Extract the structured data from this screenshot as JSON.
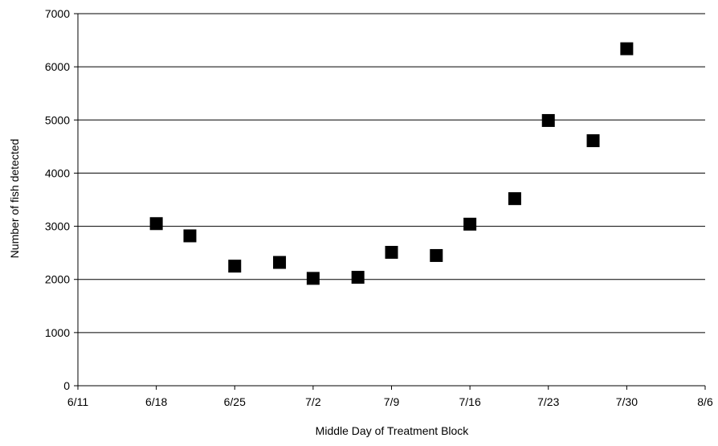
{
  "chart_data": {
    "type": "scatter",
    "title": "",
    "xlabel": "Middle Day of Treatment Block",
    "ylabel": "Number of fish detected",
    "x_ticks": [
      "6/11",
      "6/18",
      "6/25",
      "7/2",
      "7/9",
      "7/16",
      "7/23",
      "7/30",
      "8/6"
    ],
    "y_ticks": [
      "0",
      "1000",
      "2000",
      "3000",
      "4000",
      "5000",
      "6000",
      "7000"
    ],
    "xlim": [
      "6/11",
      "8/6"
    ],
    "ylim": [
      0,
      7000
    ],
    "grid": "horizontal",
    "legend": "none",
    "marker": "square",
    "colors": {
      "marker": "#000000",
      "grid": "#000000",
      "axis": "#000000"
    },
    "points": [
      {
        "x": "6/18",
        "y": 3050
      },
      {
        "x": "6/21",
        "y": 2820
      },
      {
        "x": "6/25",
        "y": 2250
      },
      {
        "x": "6/29",
        "y": 2320
      },
      {
        "x": "7/2",
        "y": 2020
      },
      {
        "x": "7/6",
        "y": 2040
      },
      {
        "x": "7/9",
        "y": 2510
      },
      {
        "x": "7/13",
        "y": 2450
      },
      {
        "x": "7/16",
        "y": 3040
      },
      {
        "x": "7/20",
        "y": 3520
      },
      {
        "x": "7/23",
        "y": 4990
      },
      {
        "x": "7/27",
        "y": 4610
      },
      {
        "x": "7/30",
        "y": 6340
      }
    ]
  }
}
